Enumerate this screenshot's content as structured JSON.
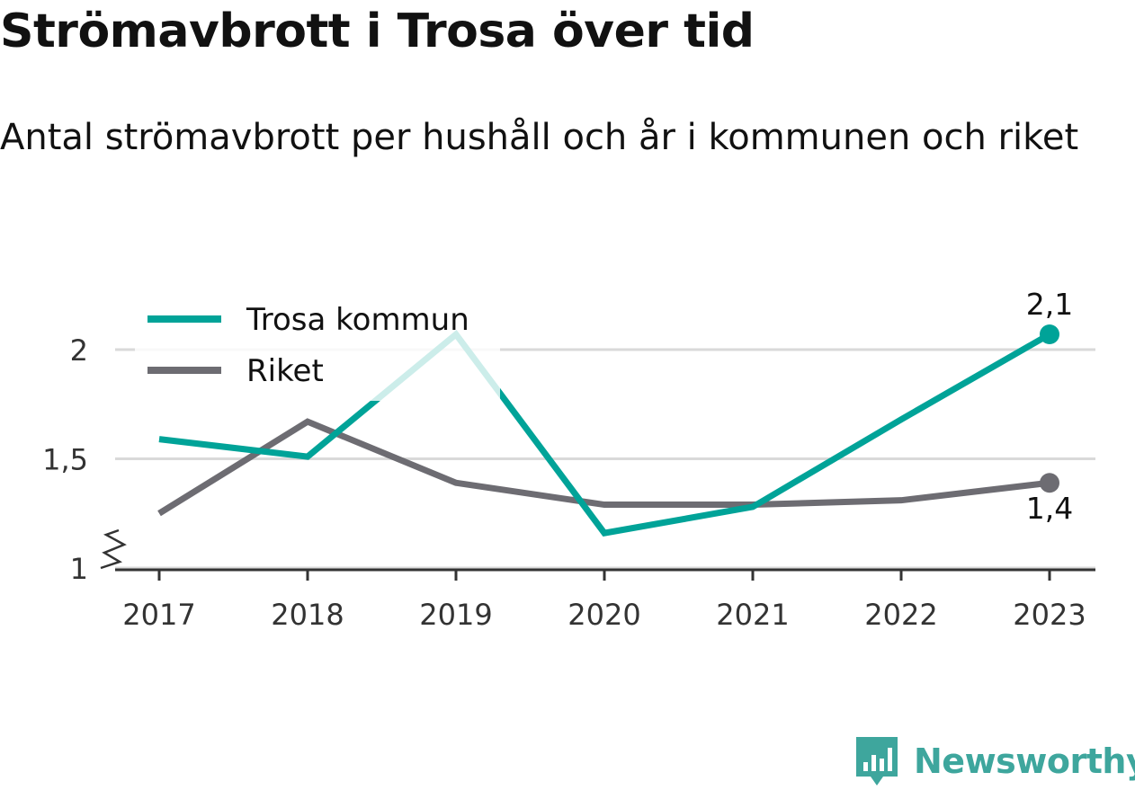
{
  "title": "Strömavbrott i Trosa över tid",
  "subtitle": "Antal strömavbrott per hushåll och år i kommunen och riket",
  "brand": {
    "name": "Newsworthy",
    "icon": "newsworthy-logo-icon"
  },
  "colors": {
    "trosa": "#00a398",
    "riket": "#6d6c72",
    "grid": "#d9d9d9",
    "axis": "#333333",
    "text": "#111111"
  },
  "chart_data": {
    "type": "line",
    "categories": [
      "2017",
      "2018",
      "2019",
      "2020",
      "2021",
      "2022",
      "2023"
    ],
    "series": [
      {
        "name": "Trosa kommun",
        "values": [
          1.59,
          1.51,
          2.07,
          1.16,
          1.28,
          1.68,
          2.07
        ],
        "end_label": "2,1"
      },
      {
        "name": "Riket",
        "values": [
          1.25,
          1.67,
          1.39,
          1.29,
          1.29,
          1.31,
          1.39
        ],
        "end_label": "1,4"
      }
    ],
    "y_ticks": [
      {
        "value": 1,
        "label": "1"
      },
      {
        "value": 1.5,
        "label": "1,5"
      },
      {
        "value": 2,
        "label": "2"
      }
    ],
    "ylim": [
      1,
      2.2
    ],
    "y_axis_break": true,
    "grid": true,
    "legend_position": "top-left"
  }
}
